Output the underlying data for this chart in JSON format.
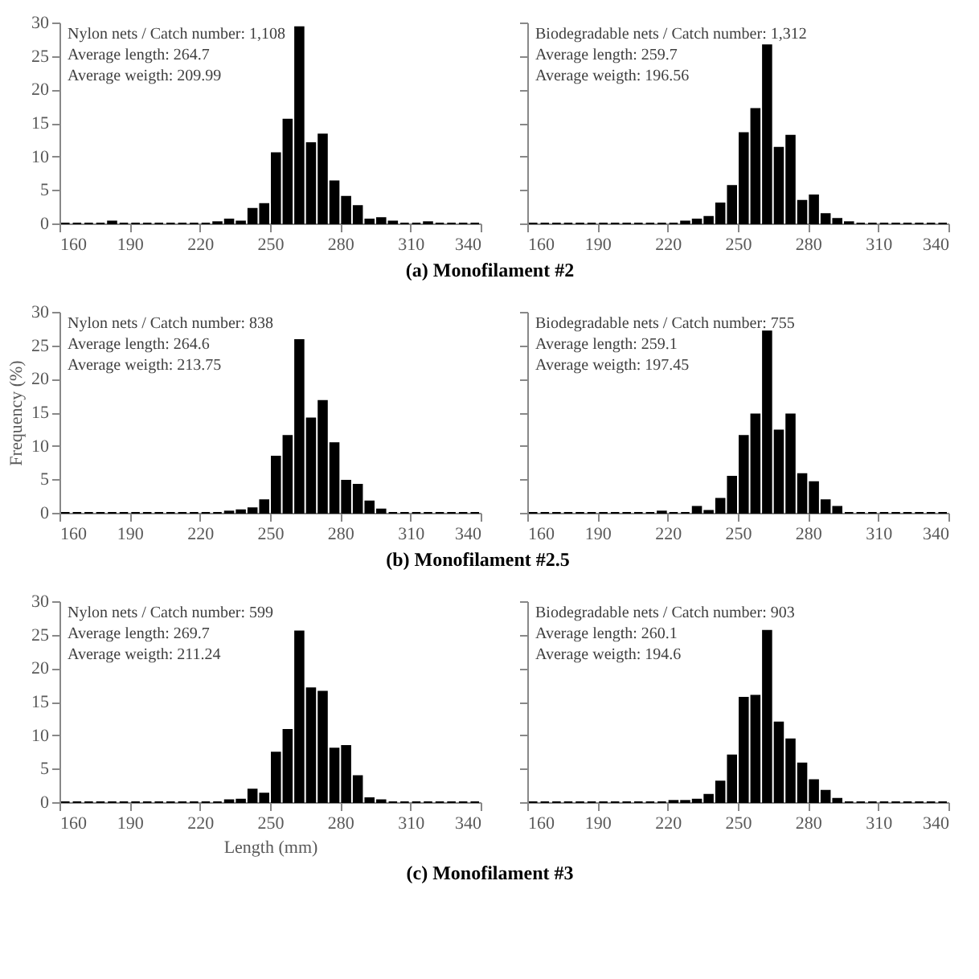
{
  "chart_data": [
    {
      "type": "histogram",
      "title": "(a) Monofilament #2",
      "annotations": [
        "Nylon nets / Catch number: 1,108",
        "Average length: 264.7",
        "Average weigth: 209.99"
      ],
      "color": "#000000",
      "bins": [
        160,
        165,
        170,
        175,
        180,
        185,
        190,
        195,
        200,
        205,
        210,
        215,
        220,
        225,
        230,
        235,
        240,
        245,
        250,
        255,
        260,
        265,
        270,
        275,
        280,
        285,
        290,
        295,
        300,
        305,
        310,
        315,
        320,
        325,
        330,
        335,
        340
      ],
      "values": [
        0,
        0,
        0,
        0,
        0.3,
        0,
        0,
        0,
        0,
        0,
        0,
        0,
        0,
        0.2,
        0.6,
        0.3,
        2.2,
        2.9,
        10.5,
        15.5,
        29.3,
        12,
        13.3,
        6.3,
        4,
        2.6,
        0.6,
        0.8,
        0.3,
        0,
        0,
        0.2,
        0,
        0,
        0,
        0
      ],
      "xlim": [
        160,
        340
      ],
      "xticks": [
        160,
        190,
        220,
        250,
        280,
        310,
        340
      ],
      "ylim": [
        0,
        30
      ],
      "yticks": [
        0,
        5,
        10,
        15,
        20,
        25,
        30
      ]
    },
    {
      "type": "histogram",
      "annotations": [
        "Biodegradable nets / Catch number: 1,312",
        "Average length: 259.7",
        "Average weigth: 196.56"
      ],
      "color": "#000000",
      "bins": [
        160,
        165,
        170,
        175,
        180,
        185,
        190,
        195,
        200,
        205,
        210,
        215,
        220,
        225,
        230,
        235,
        240,
        245,
        250,
        255,
        260,
        265,
        270,
        275,
        280,
        285,
        290,
        295,
        300,
        305,
        310,
        315,
        320,
        325,
        330,
        335,
        340
      ],
      "values": [
        0,
        0,
        0,
        0,
        0,
        0,
        0,
        0,
        0,
        0,
        0,
        0,
        0,
        0.3,
        0.6,
        1,
        3,
        5.6,
        13.5,
        17.1,
        26.6,
        11.3,
        13.1,
        3.4,
        4.2,
        1.4,
        0.7,
        0.2,
        0,
        0,
        0,
        0,
        0,
        0,
        0,
        0
      ],
      "xlim": [
        160,
        340
      ],
      "xticks": [
        160,
        190,
        220,
        250,
        280,
        310,
        340
      ],
      "ylim": [
        0,
        30
      ],
      "yticks": [
        0,
        5,
        10,
        15,
        20,
        25,
        30
      ],
      "tick_labels": "x"
    },
    {
      "type": "histogram",
      "title": "(b) Monofilament #2.5",
      "ylabel": "Frequency (%)",
      "annotations": [
        "Nylon nets / Catch number: 838",
        "Average length: 264.6",
        "Average weigth: 213.75"
      ],
      "color": "#000000",
      "bins": [
        160,
        165,
        170,
        175,
        180,
        185,
        190,
        195,
        200,
        205,
        210,
        215,
        220,
        225,
        230,
        235,
        240,
        245,
        250,
        255,
        260,
        265,
        270,
        275,
        280,
        285,
        290,
        295,
        300,
        305,
        310,
        315,
        320,
        325,
        330,
        335,
        340
      ],
      "values": [
        0,
        0,
        0,
        0,
        0,
        0,
        0,
        0,
        0,
        0,
        0,
        0,
        0,
        0,
        0.2,
        0.4,
        0.7,
        1.9,
        8.4,
        11.5,
        25.8,
        14.1,
        16.7,
        10.4,
        4.8,
        4.2,
        1.7,
        0.5,
        0,
        0,
        0,
        0,
        0,
        0,
        0,
        0
      ],
      "xlim": [
        160,
        340
      ],
      "xticks": [
        160,
        190,
        220,
        250,
        280,
        310,
        340
      ],
      "ylim": [
        0,
        30
      ],
      "yticks": [
        0,
        5,
        10,
        15,
        20,
        25,
        30
      ]
    },
    {
      "type": "histogram",
      "annotations": [
        "Biodegradable nets / Catch number: 755",
        "Average length: 259.1",
        "Average weigth: 197.45"
      ],
      "color": "#000000",
      "bins": [
        160,
        165,
        170,
        175,
        180,
        185,
        190,
        195,
        200,
        205,
        210,
        215,
        220,
        225,
        230,
        235,
        240,
        245,
        250,
        255,
        260,
        265,
        270,
        275,
        280,
        285,
        290,
        295,
        300,
        305,
        310,
        315,
        320,
        325,
        330,
        335,
        340
      ],
      "values": [
        0,
        0,
        0,
        0,
        0,
        0,
        0,
        0,
        0,
        0,
        0,
        0.2,
        0,
        0,
        0.9,
        0.3,
        2.1,
        5.4,
        11.5,
        14.7,
        27.1,
        12.3,
        14.7,
        5.8,
        4.6,
        1.9,
        0.9,
        0,
        0,
        0,
        0,
        0,
        0,
        0,
        0,
        0
      ],
      "xlim": [
        160,
        340
      ],
      "xticks": [
        160,
        190,
        220,
        250,
        280,
        310,
        340
      ],
      "ylim": [
        0,
        30
      ],
      "yticks": [
        0,
        5,
        10,
        15,
        20,
        25,
        30
      ],
      "tick_labels": "x"
    },
    {
      "type": "histogram",
      "title": "(c) Monofilament #3",
      "xlabel": "Length (mm)",
      "annotations": [
        "Nylon nets / Catch number: 599",
        "Average length: 269.7",
        "Average weigth: 211.24"
      ],
      "color": "#000000",
      "bins": [
        160,
        165,
        170,
        175,
        180,
        185,
        190,
        195,
        200,
        205,
        210,
        215,
        220,
        225,
        230,
        235,
        240,
        245,
        250,
        255,
        260,
        265,
        270,
        275,
        280,
        285,
        290,
        295,
        300,
        305,
        310,
        315,
        320,
        325,
        330,
        335,
        340
      ],
      "values": [
        0,
        0,
        0,
        0,
        0,
        0,
        0,
        0,
        0,
        0,
        0,
        0,
        0,
        0,
        0.3,
        0.4,
        1.9,
        1.3,
        7.4,
        10.8,
        25.5,
        17,
        16.5,
        8,
        8.4,
        3.9,
        0.6,
        0.3,
        0,
        0,
        0,
        0,
        0,
        0,
        0,
        0
      ],
      "xlim": [
        160,
        340
      ],
      "xticks": [
        160,
        190,
        220,
        250,
        280,
        310,
        340
      ],
      "ylim": [
        0,
        30
      ],
      "yticks": [
        0,
        5,
        10,
        15,
        20,
        25,
        30
      ]
    },
    {
      "type": "histogram",
      "annotations": [
        "Biodegradable nets / Catch number: 903",
        "Average length: 260.1",
        "Average weigth: 194.6"
      ],
      "color": "#000000",
      "bins": [
        160,
        165,
        170,
        175,
        180,
        185,
        190,
        195,
        200,
        205,
        210,
        215,
        220,
        225,
        230,
        235,
        240,
        245,
        250,
        255,
        260,
        265,
        270,
        275,
        280,
        285,
        290,
        295,
        300,
        305,
        310,
        315,
        320,
        325,
        330,
        335,
        340
      ],
      "values": [
        0,
        0,
        0,
        0,
        0,
        0,
        0,
        0,
        0,
        0,
        0,
        0,
        0.2,
        0.2,
        0.4,
        1.1,
        3.1,
        7,
        15.6,
        15.9,
        25.6,
        11.9,
        9.4,
        5.8,
        3.3,
        1.7,
        0.5,
        0,
        0,
        0,
        0,
        0,
        0,
        0,
        0,
        0
      ],
      "xlim": [
        160,
        340
      ],
      "xticks": [
        160,
        190,
        220,
        250,
        280,
        310,
        340
      ],
      "ylim": [
        0,
        30
      ],
      "yticks": [
        0,
        5,
        10,
        15,
        20,
        25,
        30
      ],
      "tick_labels": "x"
    }
  ]
}
